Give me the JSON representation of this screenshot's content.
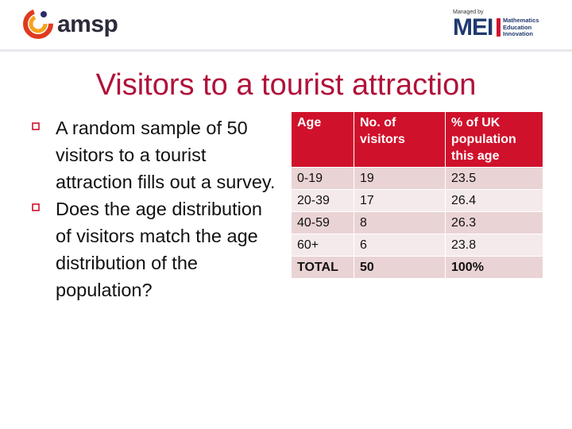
{
  "header": {
    "amsp_logo_text": "amsp",
    "mei_managed_text": "Managed by",
    "mei_logo_text": "MEI",
    "mei_lines": [
      "Mathematics",
      "Education",
      "Innovation"
    ]
  },
  "title": "Visitors to a tourist attraction",
  "bullets": [
    "A random sample of 50 visitors to a tourist attraction fills out a survey.",
    "Does the age distribution of visitors match the age distribution of the population?"
  ],
  "table": {
    "headers": [
      "Age",
      "No. of visitors",
      "% of UK population this age"
    ],
    "rows": [
      [
        "0-19",
        "19",
        "23.5"
      ],
      [
        "20-39",
        "17",
        "26.4"
      ],
      [
        "40-59",
        "8",
        "26.3"
      ],
      [
        "60+",
        "6",
        "23.8"
      ],
      [
        "TOTAL",
        "50",
        "100%"
      ]
    ]
  },
  "colors": {
    "accent": "#d0112b",
    "title": "#b0123a",
    "row_odd": "#ead3d5",
    "row_even": "#f5eaeb"
  }
}
